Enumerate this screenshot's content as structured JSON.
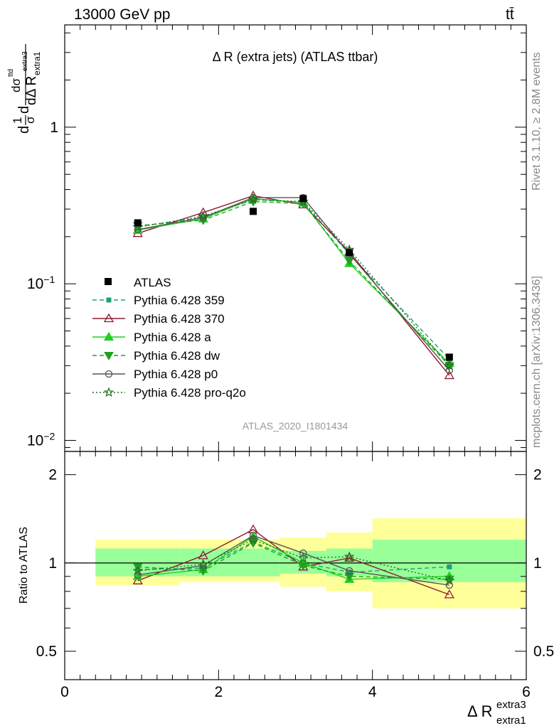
{
  "header": {
    "left": "13000 GeV pp",
    "right": "tt̄"
  },
  "side_labels": {
    "top": "Rivet 3.1.10, ≥ 2.8M events",
    "bottom": "mcplots.cern.ch [arXiv:1306.3436]"
  },
  "chart_data": {
    "type": "line",
    "title": "Δ R (extra jets) (ATLAS ttbar)",
    "watermark": "ATLAS_2020_I1801434",
    "xlabel": "Δ R",
    "xlabel_sup": "extra3",
    "xlabel_sub": "extra1",
    "ylabel_main": "dσ^ttd / dΔ R extra1^extra3 · 1/σ",
    "ylabel_ratio": "Ratio to ATLAS",
    "xlim": [
      0,
      6
    ],
    "ylim_main": [
      0.0085,
      4.5
    ],
    "yscale_main": "log",
    "ylim_ratio": [
      0.4,
      2.4
    ],
    "yscale_ratio": "log",
    "x_ticks": [
      "0",
      "2",
      "4",
      "6"
    ],
    "y_ticks_main": [
      "1",
      "10^-1",
      "10^-2"
    ],
    "y_ticks_ratio": [
      "2",
      "1",
      "0.5"
    ],
    "legend_position": "middle-left",
    "data": {
      "name": "ATLAS",
      "x": [
        0.95,
        2.45,
        3.1,
        3.7,
        5.0
      ],
      "y": [
        0.245,
        0.29,
        0.35,
        0.158,
        0.034
      ],
      "bins": [
        [
          0.4,
          1.5
        ],
        [
          1.5,
          2.8
        ],
        [
          2.8,
          3.4
        ],
        [
          3.4,
          4.0
        ],
        [
          4.0,
          6.0
        ]
      ],
      "ratio_band_inner": [
        [
          0.9,
          1.12
        ],
        [
          0.9,
          1.12
        ],
        [
          0.92,
          1.1
        ],
        [
          0.9,
          1.12
        ],
        [
          0.86,
          1.2
        ]
      ],
      "ratio_band_outer": [
        [
          0.84,
          1.2
        ],
        [
          0.86,
          1.2
        ],
        [
          0.83,
          1.22
        ],
        [
          0.8,
          1.27
        ],
        [
          0.7,
          1.42
        ]
      ]
    },
    "x": [
      0.95,
      1.8,
      2.45,
      3.1,
      3.7,
      5.0
    ],
    "series": [
      {
        "name": "Pythia 6.428 359",
        "color": "#1ea07a",
        "dash": "6,4",
        "marker": "square",
        "values": [
          0.232,
          0.265,
          0.345,
          0.33,
          0.155,
          0.033
        ],
        "ratio": [
          0.95,
          0.96,
          1.18,
          1.0,
          0.93,
          0.97
        ]
      },
      {
        "name": "Pythia 6.428 370",
        "color": "#8b1a30",
        "dash": "",
        "marker": "triangle-open",
        "values": [
          0.21,
          0.285,
          0.365,
          0.32,
          0.16,
          0.026
        ],
        "ratio": [
          0.87,
          1.06,
          1.3,
          0.97,
          1.04,
          0.78
        ]
      },
      {
        "name": "Pythia 6.428 a",
        "color": "#20d020",
        "dash": "",
        "marker": "triangle",
        "values": [
          0.22,
          0.26,
          0.35,
          0.33,
          0.135,
          0.031
        ],
        "ratio": [
          0.9,
          0.95,
          1.23,
          1.0,
          0.88,
          0.9
        ]
      },
      {
        "name": "Pythia 6.428 dw",
        "color": "#20a020",
        "dash": "6,4",
        "marker": "triangle-down",
        "values": [
          0.235,
          0.255,
          0.335,
          0.325,
          0.14,
          0.03
        ],
        "ratio": [
          0.97,
          0.94,
          1.17,
          0.98,
          0.9,
          0.88
        ]
      },
      {
        "name": "Pythia 6.428 p0",
        "color": "#555555",
        "dash": "",
        "marker": "circle-open",
        "values": [
          0.222,
          0.265,
          0.355,
          0.355,
          0.155,
          0.028
        ],
        "ratio": [
          0.91,
          0.98,
          1.24,
          1.08,
          0.94,
          0.84
        ]
      },
      {
        "name": "Pythia 6.428 pro-q2o",
        "color": "#207020",
        "dash": "2,3",
        "marker": "star-open",
        "values": [
          0.23,
          0.27,
          0.345,
          0.335,
          0.165,
          0.03
        ],
        "ratio": [
          0.94,
          0.99,
          1.2,
          1.04,
          1.05,
          0.87
        ]
      }
    ]
  }
}
